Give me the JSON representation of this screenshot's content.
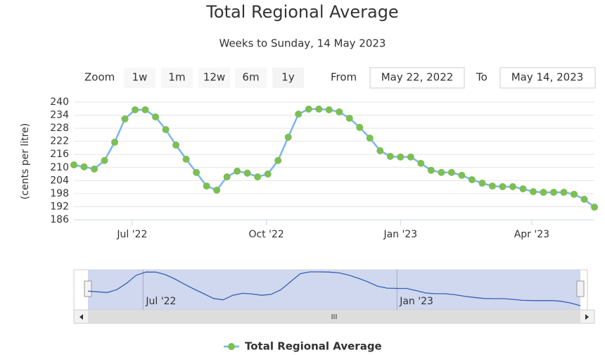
{
  "chart_data": {
    "type": "line",
    "title": "Total Regional Average",
    "subtitle": "Weeks to Sunday, 14 May 2023",
    "y_axis_label": "(cents per litre)",
    "range_selector": {
      "label": "Zoom",
      "buttons": [
        "1w",
        "1m",
        "12w",
        "6m",
        "1y"
      ],
      "from_label": "From",
      "from": "May 22, 2022",
      "to_label": "To",
      "to": "May 14, 2023"
    },
    "x": [
      "2022-05-22",
      "2022-05-29",
      "2022-06-05",
      "2022-06-12",
      "2022-06-19",
      "2022-06-26",
      "2022-07-03",
      "2022-07-10",
      "2022-07-17",
      "2022-07-24",
      "2022-07-31",
      "2022-08-07",
      "2022-08-14",
      "2022-08-21",
      "2022-08-28",
      "2022-09-04",
      "2022-09-11",
      "2022-09-18",
      "2022-09-25",
      "2022-10-02",
      "2022-10-09",
      "2022-10-16",
      "2022-10-23",
      "2022-10-30",
      "2022-11-06",
      "2022-11-13",
      "2022-11-20",
      "2022-11-27",
      "2022-12-04",
      "2022-12-11",
      "2022-12-18",
      "2022-12-25",
      "2023-01-01",
      "2023-01-08",
      "2023-01-15",
      "2023-01-22",
      "2023-01-29",
      "2023-02-05",
      "2023-02-12",
      "2023-02-19",
      "2023-02-26",
      "2023-03-05",
      "2023-03-12",
      "2023-03-19",
      "2023-03-26",
      "2023-04-02",
      "2023-04-09",
      "2023-04-16",
      "2023-04-23",
      "2023-04-30",
      "2023-05-07",
      "2023-05-14"
    ],
    "series": [
      {
        "name": "Total Regional Average",
        "color": "#7cb5ec",
        "marker_color": "#7cbf52",
        "values": [
          211.2,
          210.3,
          209.3,
          213.2,
          221.6,
          232.3,
          236.5,
          236.5,
          233.2,
          227.4,
          220.3,
          213.8,
          207.7,
          201.5,
          199.6,
          205.7,
          208.3,
          207.4,
          205.7,
          207.0,
          213.2,
          223.9,
          234.5,
          236.8,
          236.8,
          236.5,
          235.5,
          232.6,
          228.4,
          223.5,
          217.7,
          215.1,
          214.8,
          214.8,
          211.9,
          208.7,
          207.7,
          207.7,
          206.4,
          204.4,
          202.8,
          201.5,
          201.2,
          201.2,
          200.2,
          198.9,
          198.6,
          198.6,
          198.6,
          197.7,
          195.4,
          191.8
        ]
      }
    ],
    "xlim": [
      "2022-05-22",
      "2023-05-14"
    ],
    "xticks": [
      {
        "value": "2022-07-01",
        "label": "Jul '22"
      },
      {
        "value": "2022-10-01",
        "label": "Oct '22"
      },
      {
        "value": "2023-01-01",
        "label": "Jan '23"
      },
      {
        "value": "2023-04-01",
        "label": "Apr '23"
      }
    ],
    "ylim": [
      186,
      240
    ],
    "yticks": [
      186,
      192,
      198,
      204,
      210,
      216,
      222,
      228,
      234,
      240
    ],
    "grid": true,
    "navigator": {
      "xticks": [
        {
          "value": "2022-07-01",
          "label": "Jul '22"
        },
        {
          "value": "2023-01-01",
          "label": "Jan '23"
        }
      ]
    }
  }
}
